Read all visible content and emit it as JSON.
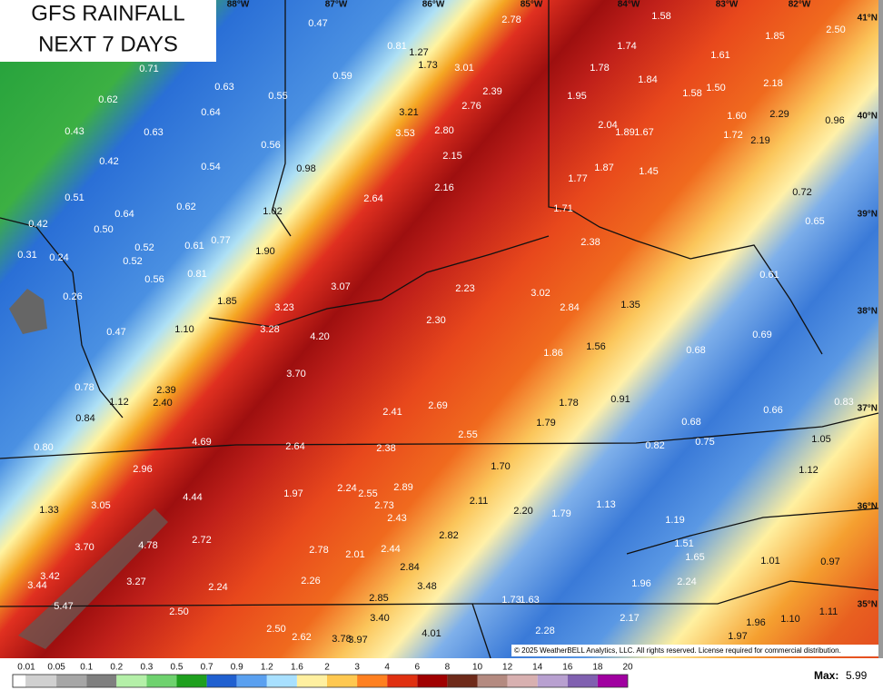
{
  "title": [
    "GFS RAINFALL",
    "NEXT 7 DAYS"
  ],
  "longitude_labels": [
    "88°W",
    "87°W",
    "86°W",
    "85°W",
    "84°W",
    "83°W",
    "82°W"
  ],
  "latitude_labels": [
    "41°N",
    "40°N",
    "39°N",
    "38°N",
    "37°N",
    "36°N",
    "35°N"
  ],
  "values": [
    "0.47",
    "2.78",
    "1.58",
    "1.85",
    "2.50",
    "0.81",
    "1.27",
    "1.74",
    "0.71",
    "1.73",
    "3.01",
    "1.78",
    "1.61",
    "0.59",
    "1.84",
    "2.18",
    "0.63",
    "0.55",
    "2.39",
    "1.95",
    "1.58",
    "1.50",
    "0.62",
    "0.64",
    "3.21",
    "2.76",
    "1.60",
    "2.29",
    "0.96",
    "0.43",
    "0.63",
    "3.53",
    "2.80",
    "2.04",
    "1.89",
    "1.67",
    "1.72",
    "2.19",
    "0.56",
    "2.15",
    "0.42",
    "0.54",
    "0.98",
    "1.87",
    "1.45",
    "1.77",
    "2.16",
    "0.72",
    "0.51",
    "2.64",
    "0.62",
    "1.02",
    "1.71",
    "0.65",
    "0.64",
    "0.42",
    "0.50",
    "0.77",
    "0.61",
    "0.52",
    "2.38",
    "0.31",
    "0.24",
    "0.52",
    "1.90",
    "0.81",
    "0.56",
    "0.61",
    "3.07",
    "2.23",
    "3.02",
    "0.26",
    "1.85",
    "3.23",
    "2.84",
    "1.35",
    "2.30",
    "0.47",
    "1.10",
    "3.28",
    "4.20",
    "0.69",
    "1.86",
    "1.56",
    "0.68",
    "3.70",
    "0.78",
    "2.39",
    "1.12",
    "2.40",
    "1.78",
    "0.91",
    "0.83",
    "2.69",
    "2.41",
    "0.66",
    "0.84",
    "1.79",
    "0.68",
    "2.55",
    "4.69",
    "2.64",
    "2.38",
    "0.82",
    "0.75",
    "1.05",
    "0.80",
    "2.96",
    "1.70",
    "1.12",
    "1.97",
    "2.24",
    "2.55",
    "2.89",
    "4.44",
    "2.11",
    "1.33",
    "3.05",
    "2.73",
    "1.13",
    "2.20",
    "1.79",
    "2.43",
    "1.19",
    "3.70",
    "4.78",
    "2.72",
    "2.82",
    "1.51",
    "2.78",
    "2.01",
    "2.44",
    "1.65",
    "1.01",
    "0.97",
    "3.42",
    "2.84",
    "3.27",
    "2.26",
    "3.44",
    "2.24",
    "3.48",
    "1.96",
    "2.24",
    "1.73",
    "1.63",
    "2.85",
    "5.47",
    "2.50",
    "1.11",
    "3.40",
    "2.17",
    "1.10",
    "1.96",
    "2.50",
    "2.28",
    "4.01",
    "1.97",
    "2.62",
    "3.78",
    "3.97"
  ],
  "copyright": "© 2025 WeatherBELL Analytics, LLC. All rights reserved. License required for commercial distribution.",
  "legend": {
    "ticks": [
      0.01,
      0.05,
      0.1,
      0.2,
      0.3,
      0.5,
      0.7,
      0.9,
      1.2,
      1.6,
      2,
      3,
      4,
      6,
      8,
      10,
      12,
      14,
      16,
      18,
      20
    ],
    "colors": [
      "#d0d0d0",
      "#a6a6a6",
      "#7f7f7f",
      "#b4f0a8",
      "#6ed26e",
      "#1ea01e",
      "#2060d0",
      "#5aa0f0",
      "#a8e0ff",
      "#fff0a0",
      "#ffc850",
      "#ff8020",
      "#e03010",
      "#a00000",
      "#6e2a1a",
      "#b48a80",
      "#d8b0b0",
      "#b8a0d0",
      "#8060b0",
      "#a000a0"
    ],
    "max_label": "Max:",
    "max_value": 5.99
  }
}
